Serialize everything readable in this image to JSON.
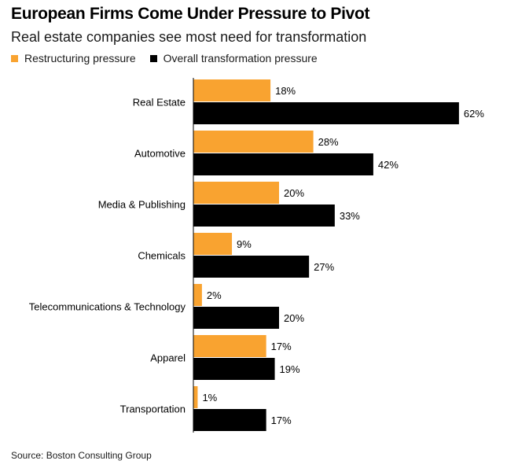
{
  "header": {
    "title": "European Firms Come Under Pressure to Pivot",
    "subtitle": "Real estate companies see most need for transformation"
  },
  "legend": {
    "items": [
      {
        "label": "Restructuring pressure",
        "color": "#f9a330"
      },
      {
        "label": "Overall transformation pressure",
        "color": "#000000"
      }
    ]
  },
  "footer": {
    "source": "Source: Boston Consulting Group"
  },
  "chart_data": {
    "type": "bar",
    "orientation": "horizontal",
    "title": "European Firms Come Under Pressure to Pivot",
    "subtitle": "Real estate companies see most need for transformation",
    "categories": [
      "Real Estate",
      "Automotive",
      "Media & Publishing",
      "Chemicals",
      "Telecommunications & Technology",
      "Apparel",
      "Transportation"
    ],
    "series": [
      {
        "name": "Restructuring pressure",
        "color": "#f9a330",
        "values": [
          18,
          28,
          20,
          9,
          2,
          17,
          1
        ]
      },
      {
        "name": "Overall transformation pressure",
        "color": "#000000",
        "values": [
          62,
          42,
          33,
          27,
          20,
          19,
          17
        ]
      }
    ],
    "value_suffix": "%",
    "xlim": [
      0,
      62
    ],
    "grid": false,
    "legend_position": "top-left"
  }
}
